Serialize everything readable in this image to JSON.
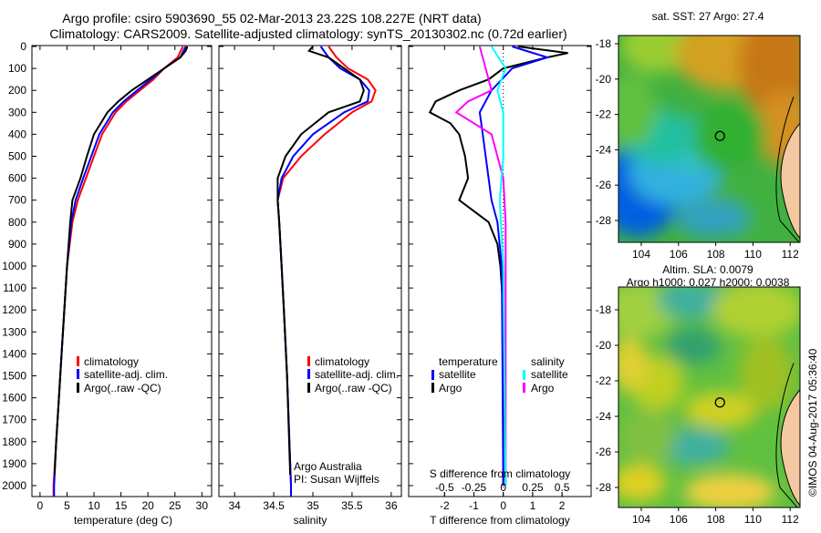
{
  "title": {
    "line1": "Argo profile: csiro 5903690_55 02-Mar-2013 23.22S 108.227E (NRT data)",
    "line2": "Climatology: CARS2009. Satellite-adjusted climatology: synTS_20130302.nc (0.72d earlier)"
  },
  "colors": {
    "climatology": "#ff0000",
    "satellite": "#0000ff",
    "argo": "#000000",
    "sal_satellite": "#00ffff",
    "sal_argo": "#ff00ff"
  },
  "chart_data": [
    {
      "type": "line",
      "xlabel": "temperature (deg C)",
      "ylim": [
        2050,
        0
      ],
      "xlim": [
        -1.5,
        31.8
      ],
      "xticks": [
        0,
        5,
        10,
        15,
        20,
        25,
        30
      ],
      "yticks": [
        0,
        100,
        200,
        300,
        400,
        500,
        600,
        700,
        800,
        900,
        1000,
        1100,
        1200,
        1300,
        1400,
        1500,
        1600,
        1700,
        1800,
        1900,
        2000
      ],
      "legend": [
        "climatology",
        "satellite-adj. clim.",
        "Argo(..raw -QC)"
      ],
      "series": [
        {
          "name": "climatology",
          "depth": [
            0,
            50,
            100,
            150,
            200,
            250,
            300,
            400,
            500,
            600,
            700,
            800,
            1000,
            1200,
            1400,
            1600,
            1800,
            2000,
            2050
          ],
          "values": [
            26.5,
            25.5,
            23,
            21,
            18.5,
            16,
            14,
            11.5,
            10,
            8.5,
            7,
            6,
            5,
            4.5,
            4,
            3.5,
            3,
            2.5,
            2.5
          ]
        },
        {
          "name": "satellite-adj. clim.",
          "depth": [
            0,
            50,
            100,
            150,
            200,
            250,
            300,
            400,
            500,
            600,
            700,
            800,
            1000,
            1200,
            1400,
            1600,
            1800,
            2000,
            2050
          ],
          "values": [
            27,
            26,
            23,
            20.5,
            18,
            15.5,
            13.5,
            11,
            9.5,
            8,
            6.6,
            5.8,
            5,
            4.5,
            4,
            3.5,
            3,
            2.6,
            2.6
          ]
        },
        {
          "name": "Argo(..raw -QC)",
          "depth": [
            0,
            20,
            50,
            100,
            150,
            200,
            250,
            300,
            400,
            500,
            600,
            700,
            800,
            1000,
            1200,
            1400,
            1600,
            1800,
            1950
          ],
          "values": [
            27.3,
            27,
            26,
            23,
            20,
            17,
            14.5,
            12.5,
            10,
            8.7,
            7.5,
            6,
            5.6,
            5,
            4.5,
            4,
            3.5,
            3,
            2.7
          ]
        }
      ]
    },
    {
      "type": "line",
      "xlabel": "salinity",
      "ylim": [
        2050,
        0
      ],
      "xlim": [
        33.8,
        36.13
      ],
      "xticks": [
        34,
        34.5,
        35,
        35.5,
        36
      ],
      "legend": [
        "climatology",
        "satellite-adj. clim.",
        "Argo(..raw -QC)"
      ],
      "annotation": [
        "Argo Australia",
        "PI: Susan Wijffels"
      ],
      "series": [
        {
          "name": "climatology",
          "depth": [
            0,
            50,
            100,
            150,
            200,
            250,
            300,
            400,
            500,
            600,
            700,
            800,
            1000,
            1200,
            1500,
            2000,
            2050
          ],
          "values": [
            35.2,
            35.3,
            35.45,
            35.7,
            35.8,
            35.75,
            35.5,
            35.15,
            34.85,
            34.62,
            34.55,
            34.57,
            34.6,
            34.63,
            34.67,
            34.72,
            34.72
          ]
        },
        {
          "name": "satellite-adj. clim.",
          "depth": [
            0,
            50,
            100,
            150,
            200,
            250,
            300,
            400,
            500,
            600,
            700,
            800,
            1000,
            1200,
            1500,
            2000,
            2050
          ],
          "values": [
            35.1,
            35.2,
            35.35,
            35.6,
            35.72,
            35.7,
            35.4,
            35.0,
            34.75,
            34.6,
            34.55,
            34.57,
            34.6,
            34.63,
            34.67,
            34.72,
            34.72
          ]
        },
        {
          "name": "Argo(..raw -QC)",
          "depth": [
            0,
            20,
            50,
            100,
            150,
            200,
            250,
            300,
            400,
            500,
            600,
            700,
            800,
            1000,
            1200,
            1500,
            1950
          ],
          "values": [
            35.0,
            34.95,
            35.2,
            35.4,
            35.6,
            35.65,
            35.6,
            35.2,
            34.85,
            34.65,
            34.55,
            34.55,
            34.57,
            34.6,
            34.63,
            34.67,
            34.71
          ]
        }
      ]
    },
    {
      "type": "line",
      "xlabel": "T difference from climatology",
      "xlabel_top": "S difference from climatology",
      "xlim": [
        -3.22,
        2.99
      ],
      "xticks": [
        -2,
        -1,
        0,
        1,
        2
      ],
      "sticks": [
        -0.5,
        -0.25,
        0,
        0.25,
        0.5
      ],
      "s_tick_labels": [
        "-0.5",
        "-0.25",
        "0",
        "0.25",
        "0.5"
      ],
      "legend": {
        "temperature": "temperature",
        "salinity": "salinity",
        "t_sat": "satellite",
        "t_argo": "Argo",
        "s_sat": "satellite",
        "s_argo": "Argo"
      },
      "series": [
        {
          "name": "T Argo",
          "depth": [
            0,
            30,
            50,
            100,
            150,
            200,
            250,
            300,
            350,
            400,
            500,
            600,
            700,
            800,
            900,
            1000,
            1200,
            2000
          ],
          "values": [
            0.5,
            2.2,
            1.5,
            0,
            -0.5,
            -1.5,
            -2.3,
            -2.5,
            -1.8,
            -1.5,
            -1.3,
            -1.2,
            -1.5,
            -0.5,
            -0.2,
            -0.1,
            0,
            0
          ]
        },
        {
          "name": "T satellite",
          "depth": [
            0,
            50,
            100,
            200,
            300,
            400,
            500,
            600,
            700,
            800,
            1000,
            2000
          ],
          "values": [
            0.3,
            1.5,
            0.3,
            -0.4,
            -0.8,
            -0.7,
            -0.6,
            -0.5,
            -0.4,
            -0.2,
            -0.05,
            0
          ]
        },
        {
          "name": "S Argo",
          "depth": [
            0,
            100,
            200,
            250,
            300,
            350,
            400,
            500,
            600,
            800,
            2000
          ],
          "values": [
            -0.2,
            -0.15,
            -0.1,
            -0.3,
            -0.4,
            -0.25,
            -0.1,
            -0.05,
            0,
            0.02,
            0.02
          ]
        },
        {
          "name": "S satellite",
          "depth": [
            0,
            100,
            200,
            300,
            500,
            700,
            1000,
            2000
          ],
          "values": [
            -0.1,
            0.02,
            -0.05,
            0,
            0,
            -0.03,
            0,
            0.02
          ]
        }
      ]
    }
  ],
  "maps": {
    "sst": {
      "title": "sat. SST: 27 Argo: 27.4",
      "lat_ticks": [
        "-18",
        "-20",
        "-22",
        "-24",
        "-26",
        "-28"
      ],
      "lon_ticks": [
        "104",
        "106",
        "108",
        "110",
        "112"
      ],
      "marker": [
        108.227,
        -23.22
      ]
    },
    "sla": {
      "title1": "Altim. SLA: 0.0079",
      "title2": "Argo h1000: 0.027 h2000: 0.0038",
      "lat_ticks": [
        "-18",
        "-20",
        "-22",
        "-24",
        "-26",
        "-28"
      ],
      "lon_ticks": [
        "104",
        "106",
        "108",
        "110",
        "112"
      ],
      "marker": [
        108.227,
        -23.22
      ]
    }
  },
  "credit": "©IMOS 04-Aug-2017 05:36:40"
}
